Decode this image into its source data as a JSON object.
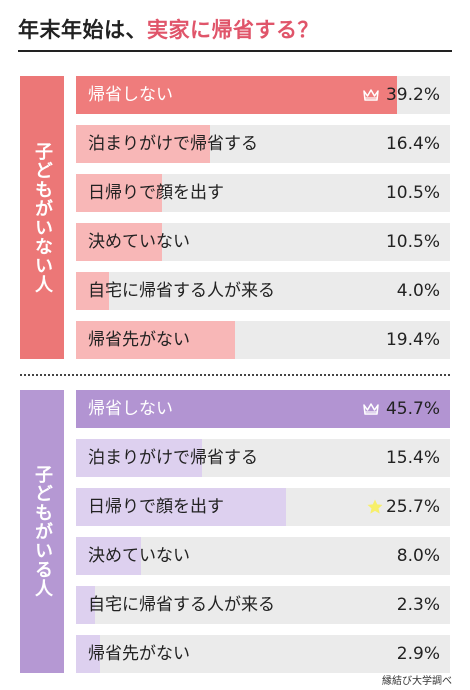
{
  "title": {
    "prefix": "年末年始は、",
    "accent": "実家に帰省する？"
  },
  "source": "縁結び大学調べ",
  "colors": {
    "group1_side": "#ec7777",
    "group1_top": "#ef7c7c",
    "group1_fill": "#f8b7b7",
    "group2_side": "#b598d3",
    "group2_top": "#b294d2",
    "group2_fill": "#ddd0ef",
    "track": "#ebebeb",
    "star": "#f7ef6a"
  },
  "chart_data": [
    {
      "type": "bar",
      "group": "子どもがいない人",
      "categories": [
        "帰省しない",
        "泊まりがけで帰省する",
        "日帰りで顔を出す",
        "決めていない",
        "自宅に帰省する人が来る",
        "帰省先がない"
      ],
      "values": [
        39.2,
        16.4,
        10.5,
        10.5,
        4.0,
        19.4
      ],
      "value_labels": [
        "39.2%",
        "16.4%",
        "10.5%",
        "10.5%",
        "4.0%",
        "19.4%"
      ],
      "xlim": [
        0,
        45.7
      ],
      "icons": [
        "crown-icon",
        null,
        null,
        null,
        null,
        null
      ]
    },
    {
      "type": "bar",
      "group": "子どもがいる人",
      "categories": [
        "帰省しない",
        "泊まりがけで帰省する",
        "日帰りで顔を出す",
        "決めていない",
        "自宅に帰省する人が来る",
        "帰省先がない"
      ],
      "values": [
        45.7,
        15.4,
        25.7,
        8.0,
        2.3,
        2.9
      ],
      "value_labels": [
        "45.7%",
        "15.4%",
        "25.7%",
        "8.0%",
        "2.3%",
        "2.9%"
      ],
      "xlim": [
        0,
        45.7
      ],
      "icons": [
        "crown-icon",
        null,
        "star-icon",
        null,
        null,
        null
      ]
    }
  ]
}
